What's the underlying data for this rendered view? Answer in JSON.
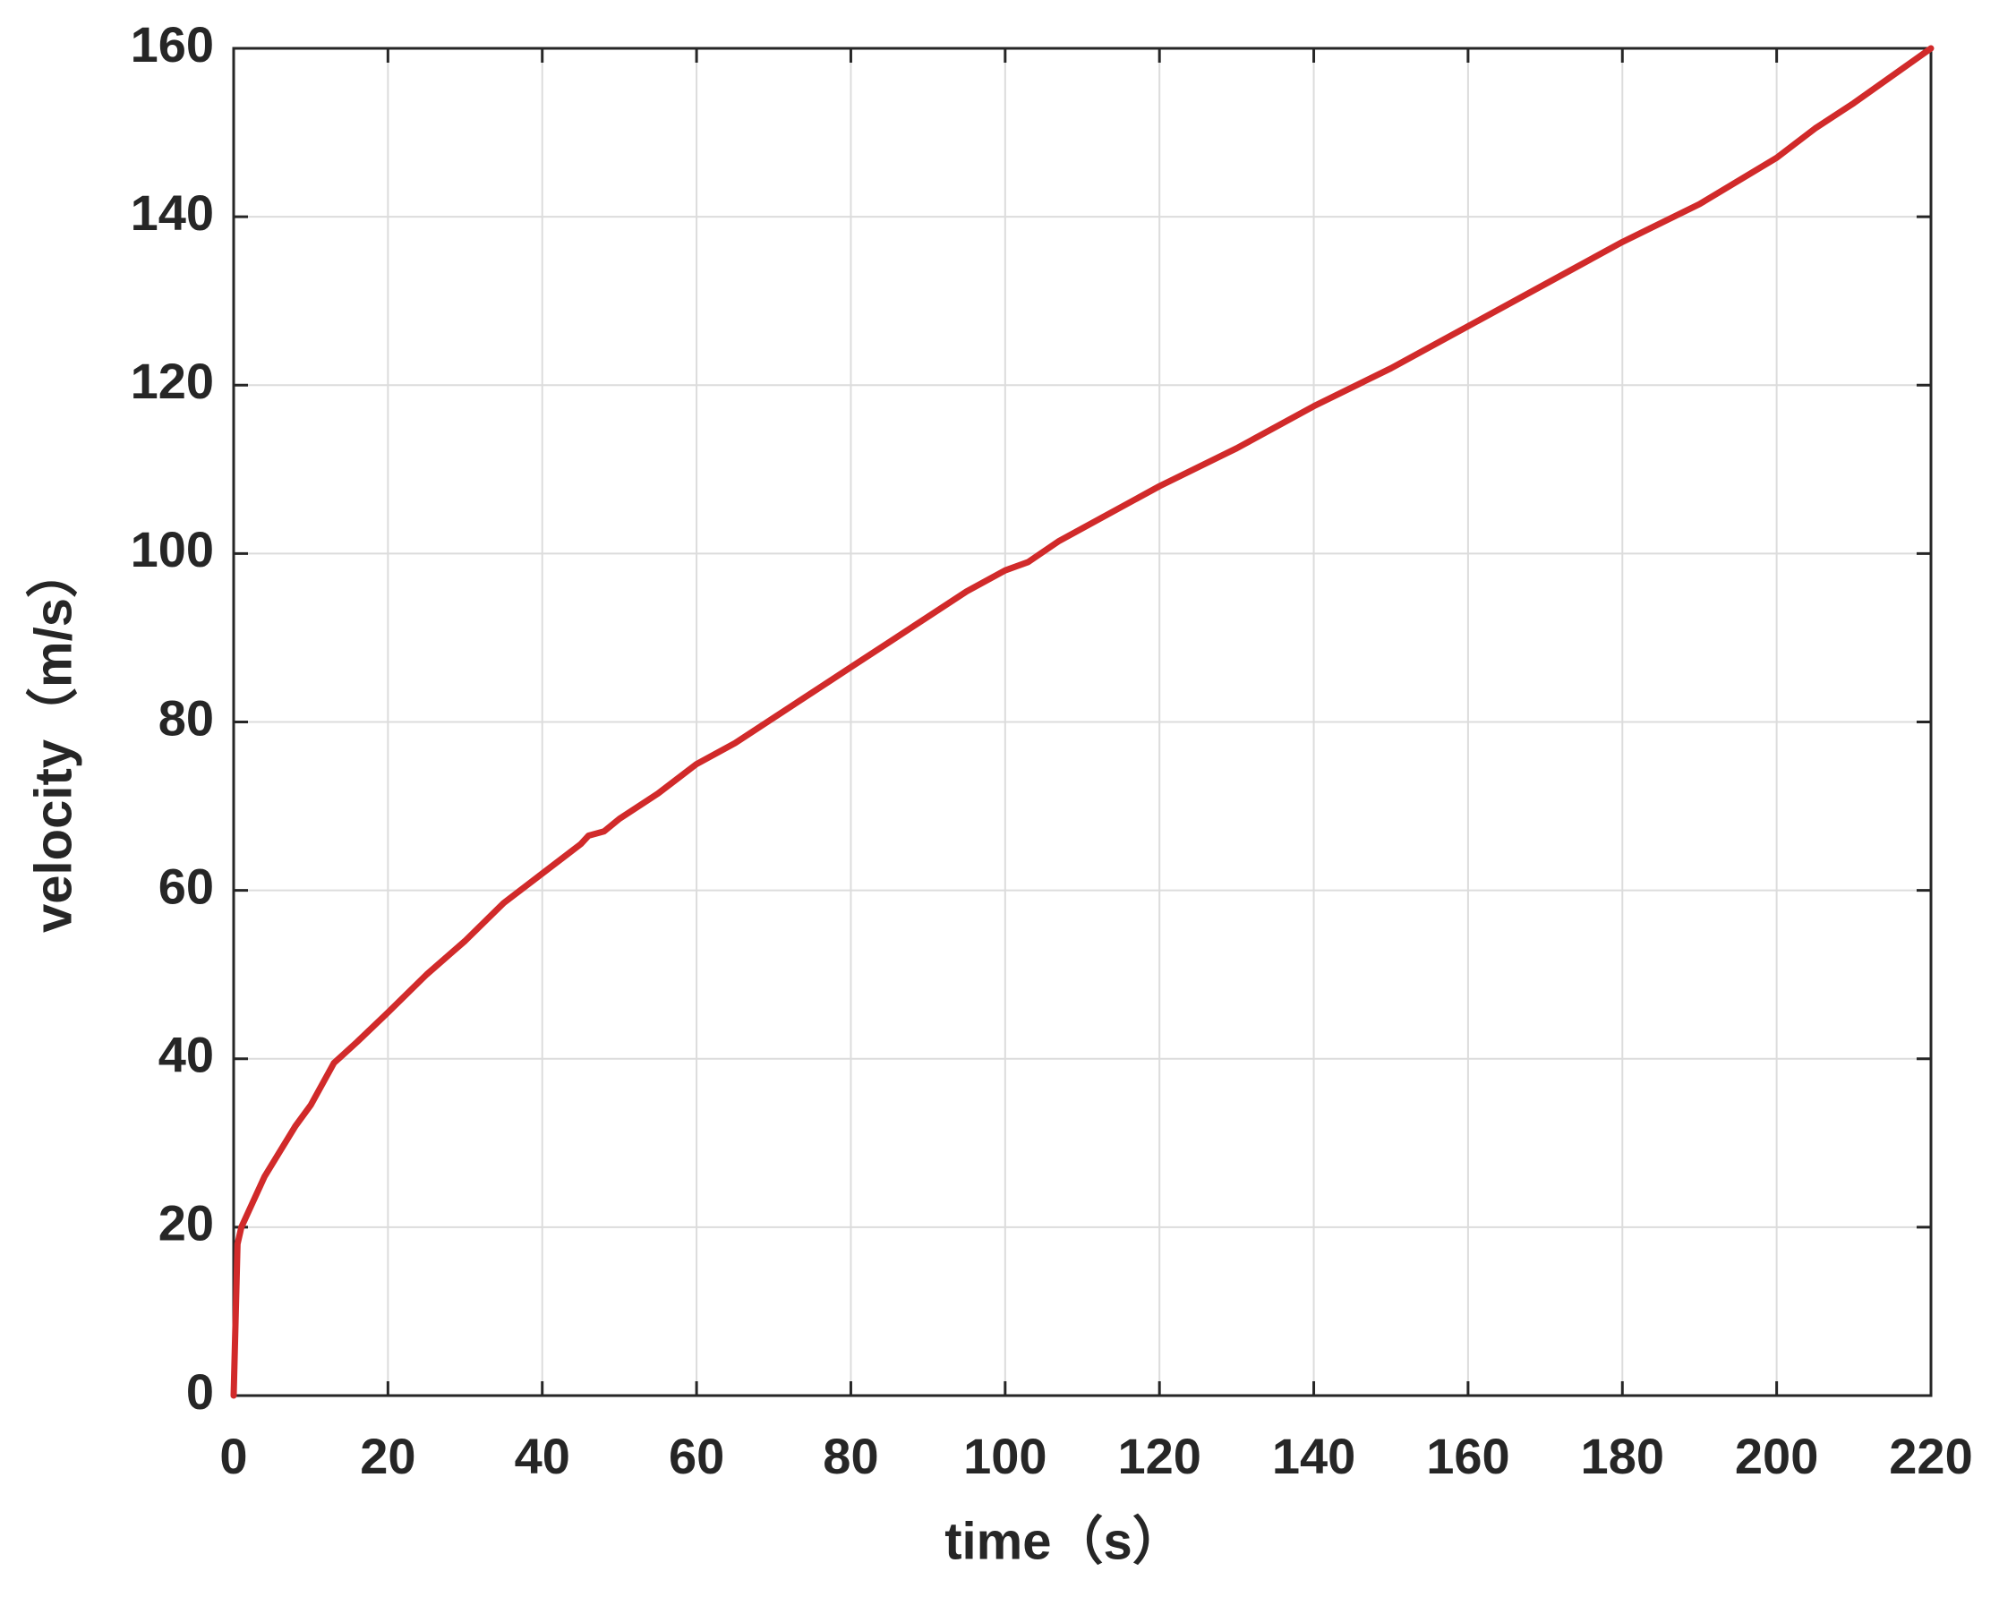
{
  "chart_data": {
    "type": "line",
    "x_label": "time（s）",
    "y_label": "velocity（m/s）",
    "x": [
      0,
      0.5,
      1,
      2,
      4,
      6,
      8,
      10,
      13,
      16,
      20,
      25,
      30,
      35,
      40,
      45,
      46,
      48,
      50,
      55,
      60,
      65,
      70,
      75,
      80,
      85,
      90,
      95,
      100,
      103,
      107,
      110,
      120,
      130,
      140,
      150,
      160,
      170,
      180,
      190,
      200,
      205,
      210,
      220
    ],
    "series": [
      {
        "name": "velocity",
        "color": "#d12a2a",
        "values": [
          0,
          18,
          20,
          22,
          26,
          29,
          32,
          34.5,
          39.5,
          42,
          45.5,
          50,
          54,
          58.5,
          62,
          65.5,
          66.5,
          67,
          68.5,
          71.5,
          75,
          77.5,
          80.5,
          83.5,
          86.5,
          89.5,
          92.5,
          95.5,
          98,
          99,
          101.5,
          103,
          108,
          112.5,
          117.5,
          122,
          127,
          132,
          137,
          141.5,
          147,
          150.5,
          153.5,
          160
        ]
      }
    ],
    "xlim": [
      0,
      220
    ],
    "xticks": [
      0,
      20,
      40,
      60,
      80,
      100,
      120,
      140,
      160,
      180,
      200,
      220
    ],
    "ylim": [
      0,
      160
    ],
    "yticks": [
      0,
      20,
      40,
      60,
      80,
      100,
      120,
      140,
      160
    ],
    "grid": true
  }
}
